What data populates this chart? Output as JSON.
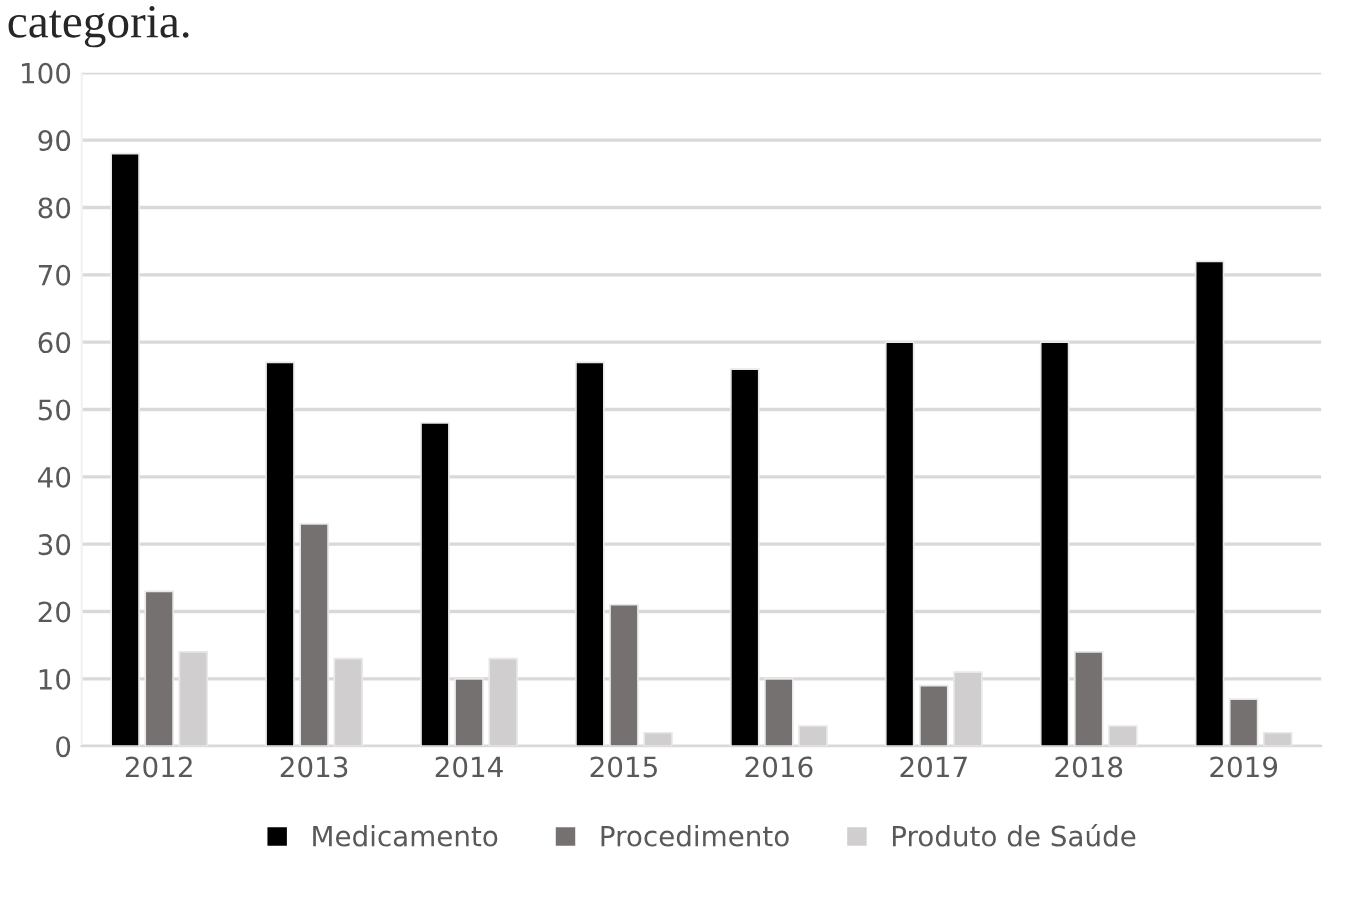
{
  "chart_data": {
    "type": "bar",
    "annotations": [
      "categoria."
    ],
    "categories": [
      "2012",
      "2013",
      "2014",
      "2015",
      "2016",
      "2017",
      "2018",
      "2019"
    ],
    "series": [
      {
        "name": "Medicamento",
        "color": "#000000",
        "values": [
          88,
          57,
          48,
          57,
          56,
          60,
          60,
          72
        ]
      },
      {
        "name": "Procedimento",
        "color": "#767171",
        "values": [
          23,
          33,
          10,
          21,
          10,
          9,
          14,
          7
        ]
      },
      {
        "name": "Produto de Saúde",
        "color": "#d0cece",
        "values": [
          14,
          13,
          13,
          2,
          3,
          11,
          3,
          2
        ]
      }
    ],
    "ylim": [
      0,
      100
    ],
    "yticks": [
      0,
      10,
      20,
      30,
      40,
      50,
      60,
      70,
      80,
      90,
      100
    ],
    "grid": "y",
    "legend": "bottom"
  }
}
